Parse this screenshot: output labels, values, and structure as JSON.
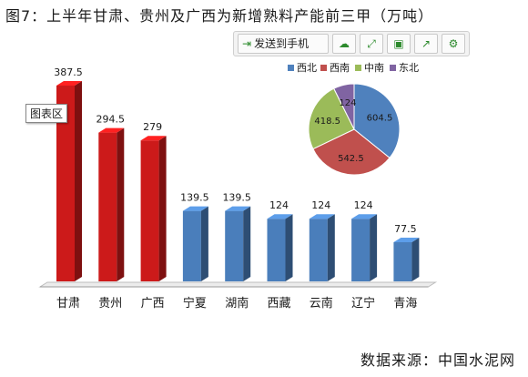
{
  "title": "图7：上半年甘肃、贵州及广西为新增熟料产能前三甲（万吨）",
  "toolbar": {
    "send_label": "发送到手机",
    "icons": [
      "send-to-phone-icon",
      "cloud-icon",
      "expand-icon",
      "save-icon",
      "share-icon",
      "settings-icon"
    ]
  },
  "tooltip": "图表区",
  "source": "数据来源：中国水泥网",
  "colors": {
    "red": "#cc1a1a",
    "blue": "#4a7ebb"
  },
  "chart_data": [
    {
      "type": "bar",
      "categories": [
        "甘肃",
        "贵州",
        "广西",
        "宁夏",
        "湖南",
        "西藏",
        "云南",
        "辽宁",
        "青海"
      ],
      "values": [
        387.5,
        294.5,
        279,
        139.5,
        139.5,
        124,
        124,
        124,
        77.5
      ],
      "data_labels": [
        "387.5",
        "294.5",
        "279",
        "139.5",
        "139.5",
        "124",
        "124",
        "124",
        "77.5"
      ],
      "bar_colors": [
        "#cc1a1a",
        "#cc1a1a",
        "#cc1a1a",
        "#4a7ebb",
        "#4a7ebb",
        "#4a7ebb",
        "#4a7ebb",
        "#4a7ebb",
        "#4a7ebb"
      ],
      "ylim": [
        0,
        420
      ],
      "grid": false,
      "style": "3d"
    },
    {
      "type": "pie",
      "labels": [
        "西北",
        "西南",
        "中南",
        "东北"
      ],
      "values": [
        604.5,
        542.5,
        418.5,
        124
      ],
      "data_labels": [
        "604.5",
        "542.5",
        "418.5",
        "124"
      ],
      "colors": [
        "#4f81bd",
        "#c0504d",
        "#9bbb59",
        "#8064a2"
      ],
      "legend": "top"
    }
  ]
}
